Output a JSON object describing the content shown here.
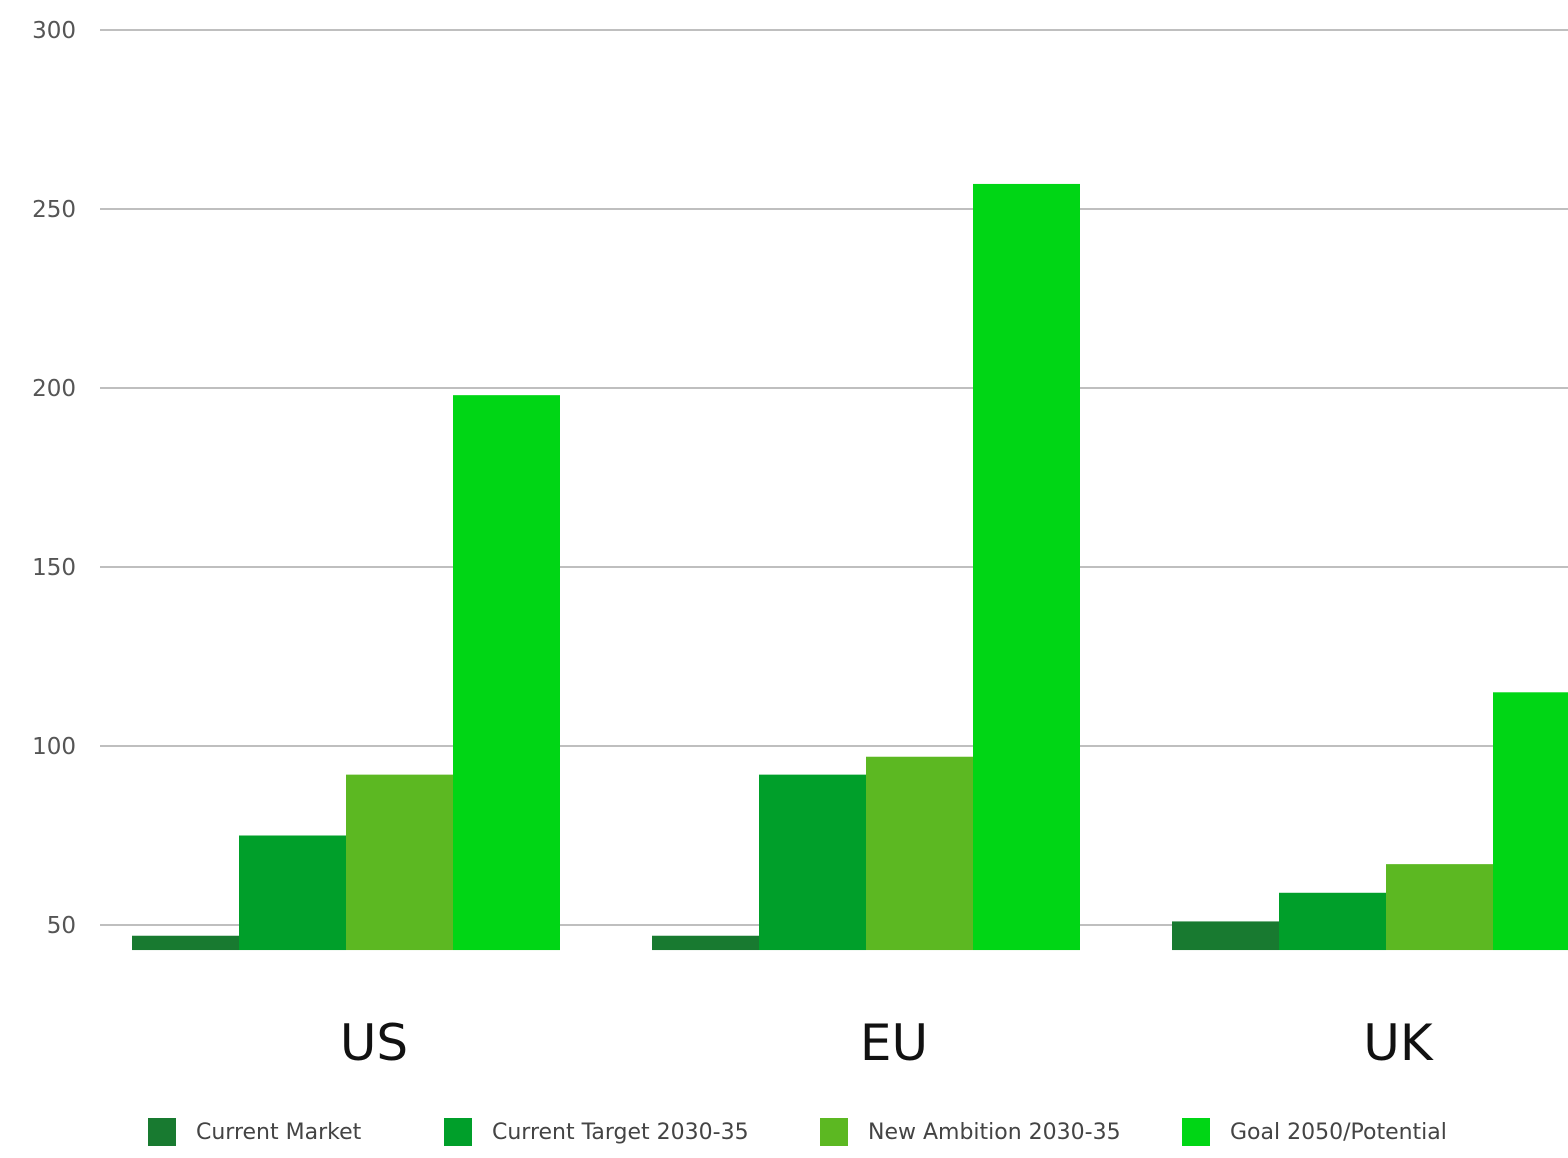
{
  "chart_data": {
    "type": "bar",
    "title": "",
    "xlabel": "",
    "ylabel": "",
    "categories": [
      "US",
      "EU",
      "UK"
    ],
    "ylim": [
      43,
      300
    ],
    "yticks": [
      50,
      100,
      150,
      200,
      250,
      300
    ],
    "grid": true,
    "legend_position": "bottom",
    "series": [
      {
        "name": "Current Market",
        "color": "#187a30",
        "values": [
          47,
          47,
          51
        ]
      },
      {
        "name": "Current Target 2030-35",
        "color": "#009f2a",
        "values": [
          75,
          92,
          59
        ]
      },
      {
        "name": "New Ambition 2030-35",
        "color": "#5cb822",
        "values": [
          92,
          97,
          67
        ]
      },
      {
        "name": "Goal 2050/Potential",
        "color": "#00d615",
        "values": [
          198,
          257,
          115
        ]
      }
    ]
  }
}
